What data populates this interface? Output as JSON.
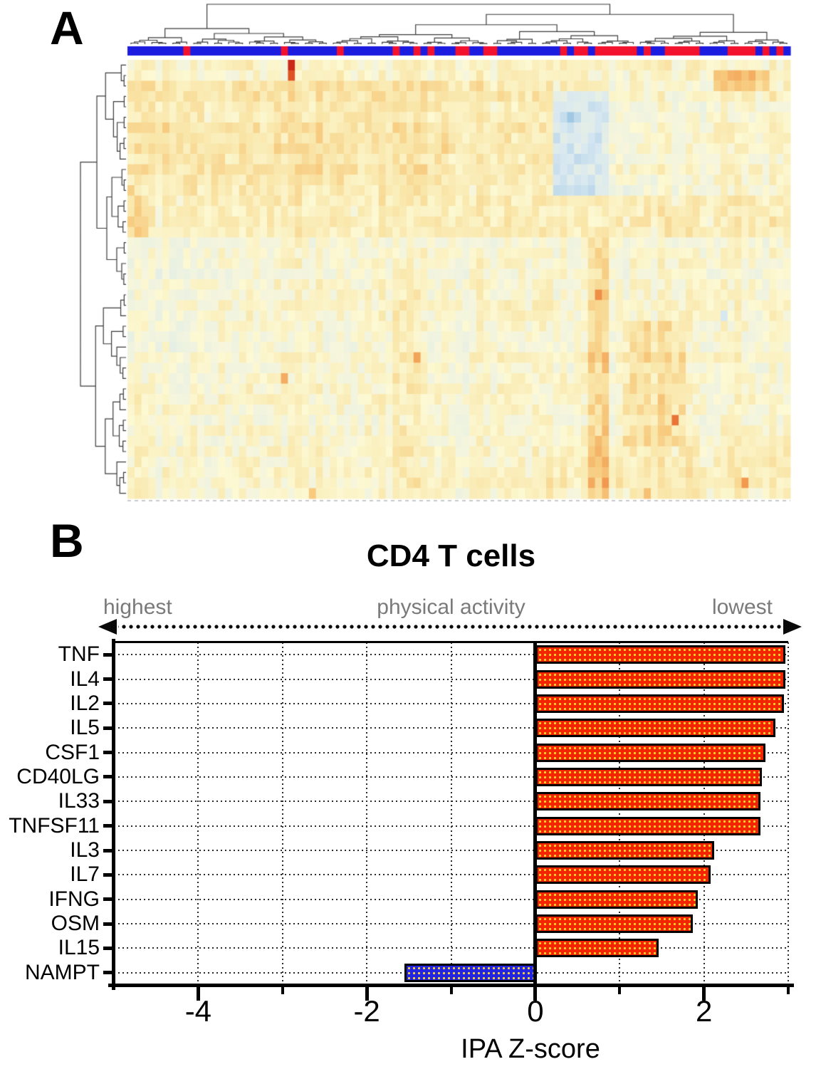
{
  "panels": {
    "a_label": "A",
    "b_label": "B"
  },
  "chart_data": [
    {
      "type": "heatmap",
      "title": "",
      "rows": 42,
      "cols": 95,
      "description": "Hierarchically clustered gene-expression heatmap with top and left dendrograms and a blue/red column annotation bar; cells range pale yellow (neutral) through orange/red (high) and pale to mid blue (low).",
      "seed": 99,
      "column_annotation": {
        "colors": {
          "b": "#1C1CE0",
          "r": "#F2122E"
        },
        "segments": [
          [
            "b",
            8
          ],
          [
            "r",
            1
          ],
          [
            "b",
            13
          ],
          [
            "r",
            1
          ],
          [
            "b",
            7
          ],
          [
            "r",
            1
          ],
          [
            "b",
            7
          ],
          [
            "r",
            1
          ],
          [
            "b",
            2
          ],
          [
            "r",
            1
          ],
          [
            "b",
            1
          ],
          [
            "r",
            1
          ],
          [
            "b",
            3
          ],
          [
            "r",
            2
          ],
          [
            "b",
            2
          ],
          [
            "r",
            2
          ],
          [
            "b",
            9
          ],
          [
            "r",
            1
          ],
          [
            "b",
            1
          ],
          [
            "r",
            2
          ],
          [
            "b",
            1
          ],
          [
            "r",
            6
          ],
          [
            "b",
            1
          ],
          [
            "r",
            1
          ],
          [
            "b",
            2
          ],
          [
            "r",
            5
          ],
          [
            "b",
            4
          ],
          [
            "r",
            4
          ],
          [
            "b",
            1
          ],
          [
            "r",
            1
          ],
          [
            "b",
            1
          ],
          [
            "r",
            1
          ],
          [
            "b",
            1
          ]
        ]
      },
      "colorscale": {
        "warm": [
          [
            0,
            "#FCF9D4"
          ],
          [
            0.3,
            "#F9E6A9"
          ],
          [
            0.55,
            "#F7CA7E"
          ],
          [
            0.8,
            "#F19A4F"
          ],
          [
            1.05,
            "#E25C27"
          ],
          [
            1.4,
            "#C42015"
          ]
        ],
        "cool": [
          [
            0,
            "#F7F6DC"
          ],
          [
            0.25,
            "#EAF1E2"
          ],
          [
            0.5,
            "#D8E8F1"
          ],
          [
            0.8,
            "#AFD0E6"
          ],
          [
            1.2,
            "#8ABADC"
          ]
        ]
      },
      "patches": [
        {
          "r0": 0,
          "r1": 1,
          "c0": 0,
          "c1": 94,
          "dv": -0.03
        },
        {
          "r0": 2,
          "r1": 12,
          "c0": 0,
          "c1": 45,
          "dv": 0.18
        },
        {
          "r0": 2,
          "r1": 12,
          "c0": 46,
          "c1": 60,
          "dv": 0.1
        },
        {
          "r0": 3,
          "r1": 12,
          "c0": 61,
          "c1": 68,
          "dv": -0.55
        },
        {
          "r0": 2,
          "r1": 12,
          "c0": 69,
          "c1": 82,
          "dv": -0.1
        },
        {
          "r0": 1,
          "r1": 2,
          "c0": 84,
          "c1": 91,
          "dv": 0.45
        },
        {
          "r0": 13,
          "r1": 16,
          "c0": 0,
          "c1": 94,
          "dv": 0.1
        },
        {
          "r0": 13,
          "r1": 16,
          "c0": 0,
          "c1": 2,
          "dv": 0.25
        },
        {
          "r0": 17,
          "r1": 41,
          "c0": 0,
          "c1": 94,
          "dv": -0.06
        },
        {
          "r0": 17,
          "r1": 30,
          "c0": 0,
          "c1": 10,
          "dv": -0.07
        },
        {
          "r0": 17,
          "r1": 41,
          "c0": 66,
          "c1": 68,
          "dv": 0.38
        },
        {
          "r0": 25,
          "r1": 36,
          "c0": 71,
          "c1": 79,
          "dv": 0.28
        },
        {
          "r0": 20,
          "r1": 41,
          "c0": 38,
          "c1": 41,
          "dv": 0.14
        },
        {
          "r0": 36,
          "r1": 41,
          "c0": 60,
          "c1": 94,
          "dv": 0.12
        }
      ],
      "singles": [
        {
          "r": 0,
          "c": 23,
          "v": 1.35
        },
        {
          "r": 1,
          "c": 23,
          "v": 1.1
        },
        {
          "r": 34,
          "c": 78,
          "v": 0.95
        },
        {
          "r": 30,
          "c": 22,
          "v": 0.7
        },
        {
          "r": 5,
          "c": 63,
          "v": -0.95
        },
        {
          "r": 12,
          "c": 0,
          "v": 0.5
        },
        {
          "r": 24,
          "c": 85,
          "v": -0.5
        },
        {
          "r": 40,
          "c": 88,
          "v": 0.8
        },
        {
          "r": 41,
          "c": 74,
          "v": 0.6
        },
        {
          "r": 22,
          "c": 67,
          "v": 0.85
        },
        {
          "r": 28,
          "c": 41,
          "v": 0.75
        },
        {
          "r": 41,
          "c": 26,
          "v": 0.55
        }
      ]
    },
    {
      "type": "bar",
      "orientation": "horizontal",
      "title": "CD4 T cells",
      "categories": [
        "TNF",
        "IL4",
        "IL2",
        "IL5",
        "CSF1",
        "CD40LG",
        "IL33",
        "TNFSF11",
        "IL3",
        "IL7",
        "IFNG",
        "OSM",
        "IL15",
        "NAMPT"
      ],
      "values": [
        2.97,
        2.97,
        2.95,
        2.85,
        2.73,
        2.69,
        2.67,
        2.67,
        2.12,
        2.08,
        1.93,
        1.87,
        1.46,
        -1.55
      ],
      "xlabel": "IPA Z-score",
      "xlim": [
        -5,
        3
      ],
      "xticks_major": [
        -4,
        -2,
        0,
        2
      ],
      "xtick_labels": [
        "-4",
        "-2",
        "0",
        "2"
      ],
      "xticks_minor": [
        -3,
        -1,
        1,
        3
      ],
      "grid": "dotted",
      "positive_color": "#F22500",
      "negative_color": "#2323E2",
      "activity_axis": {
        "left": "highest",
        "center": "physical activity",
        "right": "lowest"
      }
    }
  ]
}
